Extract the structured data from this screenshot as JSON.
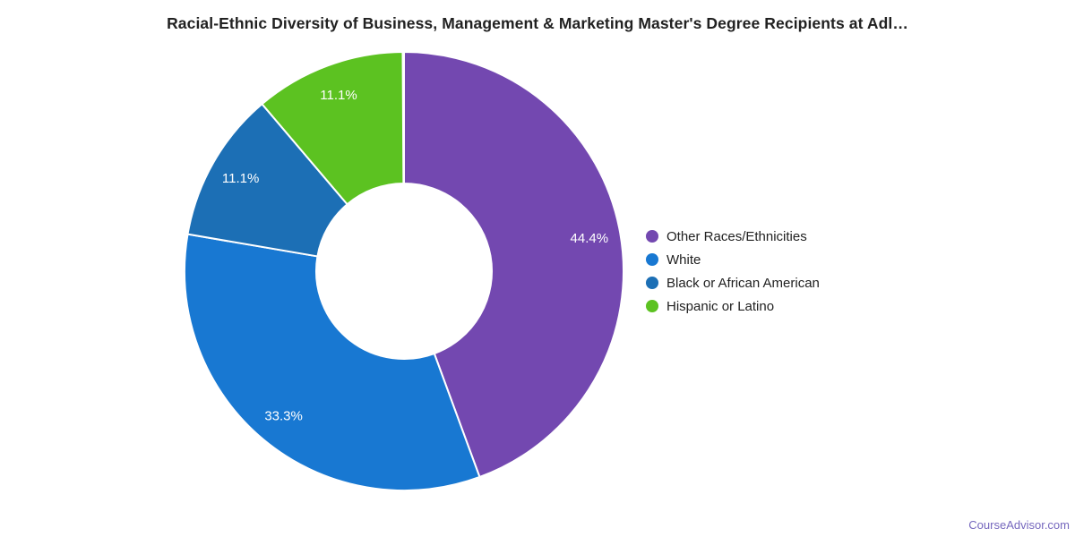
{
  "page": {
    "background": "#ffffff",
    "watermark": "CourseAdvisor.com",
    "watermark_color": "#7668be"
  },
  "chart_data": {
    "type": "pie",
    "subtype": "donut",
    "title": "Racial-Ethnic Diversity of Business, Management & Marketing Master's Degree Recipients at Adl…",
    "title_color": "#212121",
    "legend_position": "right",
    "direction": "clockwise",
    "start_angle_deg": 0,
    "inner_radius_ratio": 0.4,
    "total": 100,
    "data_label_color": "#ffffff",
    "slices": [
      {
        "label": "Other Races/Ethnicities",
        "value": 44.4,
        "data_label": "44.4%",
        "color": "#7348b0"
      },
      {
        "label": "White",
        "value": 33.3,
        "data_label": "33.3%",
        "color": "#1878d2"
      },
      {
        "label": "Black or African American",
        "value": 11.1,
        "data_label": "11.1%",
        "color": "#1c6fb5"
      },
      {
        "label": "Hispanic or Latino",
        "value": 11.1,
        "data_label": "11.1%",
        "color": "#5cc221"
      }
    ]
  }
}
